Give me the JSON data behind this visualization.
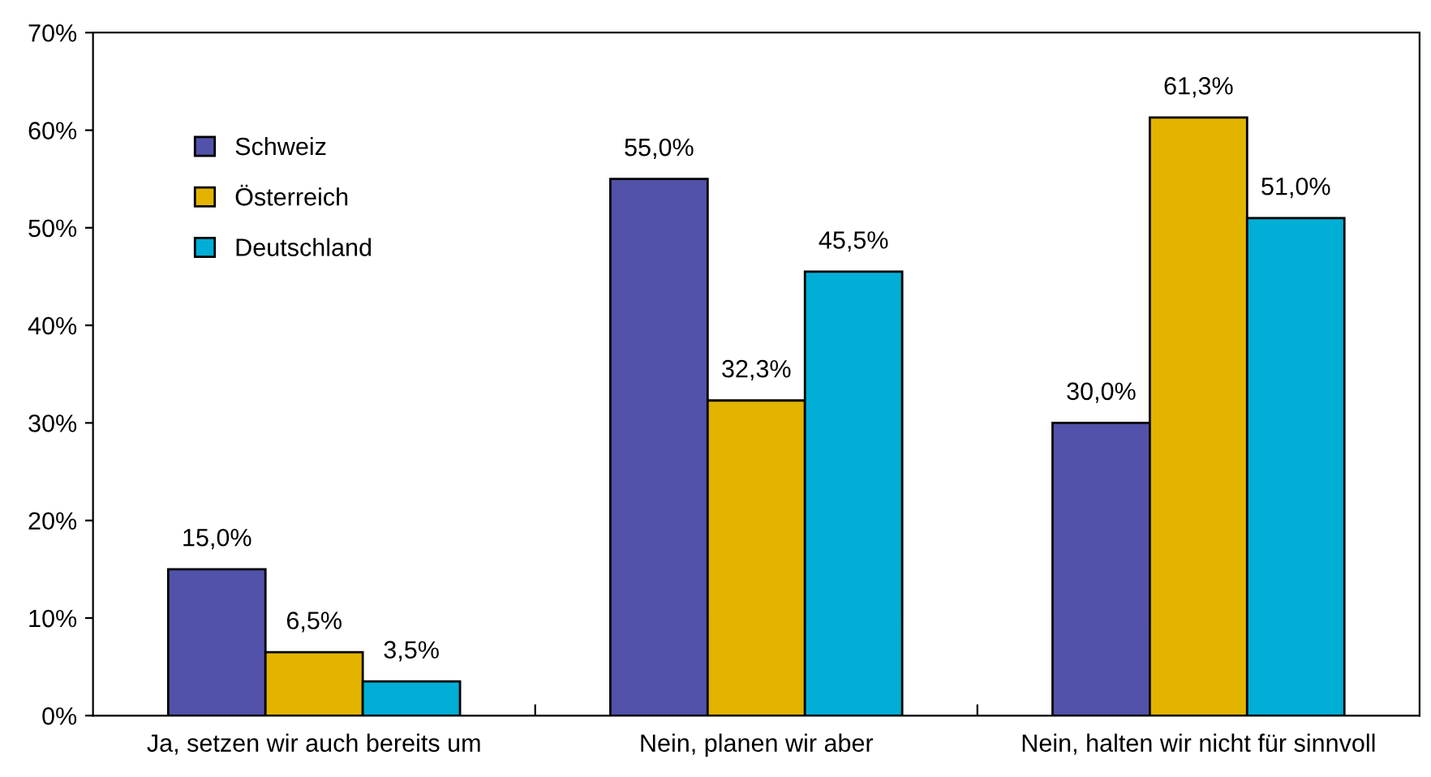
{
  "chart_data": {
    "type": "bar",
    "categories": [
      "Ja, setzen wir auch bereits um",
      "Nein, planen wir aber",
      "Nein, halten wir nicht für sinnvoll"
    ],
    "series": [
      {
        "name": "Schweiz",
        "color": "#5252aa",
        "values": [
          15.0,
          55.0,
          30.0
        ],
        "value_labels": [
          "15,0%",
          "55,0%",
          "30,0%"
        ]
      },
      {
        "name": "Österreich",
        "color": "#e2b400",
        "values": [
          6.5,
          32.3,
          61.3
        ],
        "value_labels": [
          "6,5%",
          "32,3%",
          "61,3%"
        ]
      },
      {
        "name": "Deutschland",
        "color": "#00aed6",
        "values": [
          3.5,
          45.5,
          51.0
        ],
        "value_labels": [
          "3,5%",
          "45,5%",
          "51,0%"
        ]
      }
    ],
    "ylim": [
      0,
      70
    ],
    "yticks": [
      {
        "value": 0,
        "label": "0%"
      },
      {
        "value": 10,
        "label": "10%"
      },
      {
        "value": 20,
        "label": "20%"
      },
      {
        "value": 30,
        "label": "30%"
      },
      {
        "value": 40,
        "label": "40%"
      },
      {
        "value": 50,
        "label": "50%"
      },
      {
        "value": 60,
        "label": "60%"
      },
      {
        "value": 70,
        "label": "70%"
      }
    ],
    "grid": false,
    "legend": "top left"
  }
}
